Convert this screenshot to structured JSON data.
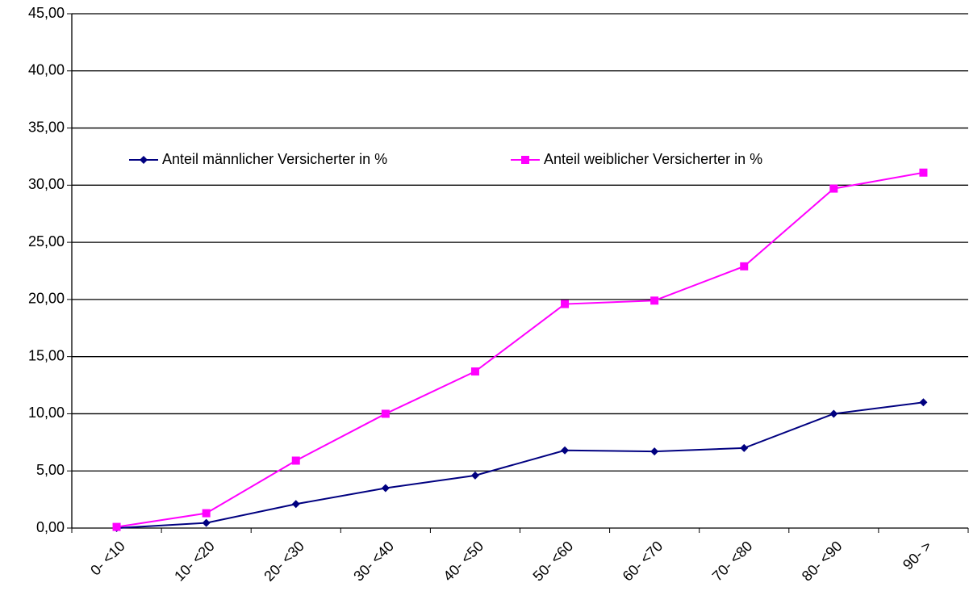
{
  "chart_data": {
    "type": "line",
    "categories": [
      "0- <10",
      "10- <20",
      "20- <30",
      "30- <40",
      "40- <50",
      "50- <60",
      "60- <70",
      "70- <80",
      "80- <90",
      "90- >"
    ],
    "series": [
      {
        "name": "Anteil männlicher Versicherter in %",
        "color": "#000080",
        "marker": "diamond",
        "values": [
          0.0,
          0.45,
          2.1,
          3.5,
          4.6,
          6.8,
          6.7,
          7.0,
          10.0,
          11.0
        ]
      },
      {
        "name": "Anteil weiblicher Versicherter in %",
        "color": "#ff00ff",
        "marker": "square",
        "values": [
          0.1,
          1.3,
          5.9,
          10.0,
          13.7,
          19.6,
          19.9,
          22.9,
          29.7,
          31.1
        ]
      }
    ],
    "ylim": [
      0,
      45
    ],
    "yticks": [
      {
        "value": 0,
        "label": "0,00"
      },
      {
        "value": 5,
        "label": "5,00"
      },
      {
        "value": 10,
        "label": "10,00"
      },
      {
        "value": 15,
        "label": "15,00"
      },
      {
        "value": 20,
        "label": "20,00"
      },
      {
        "value": 25,
        "label": "25,00"
      },
      {
        "value": 30,
        "label": "30,00"
      },
      {
        "value": 35,
        "label": "35,00"
      },
      {
        "value": 40,
        "label": "40,00"
      },
      {
        "value": 45,
        "label": "45,00"
      }
    ],
    "grid": true,
    "legend": "top"
  }
}
